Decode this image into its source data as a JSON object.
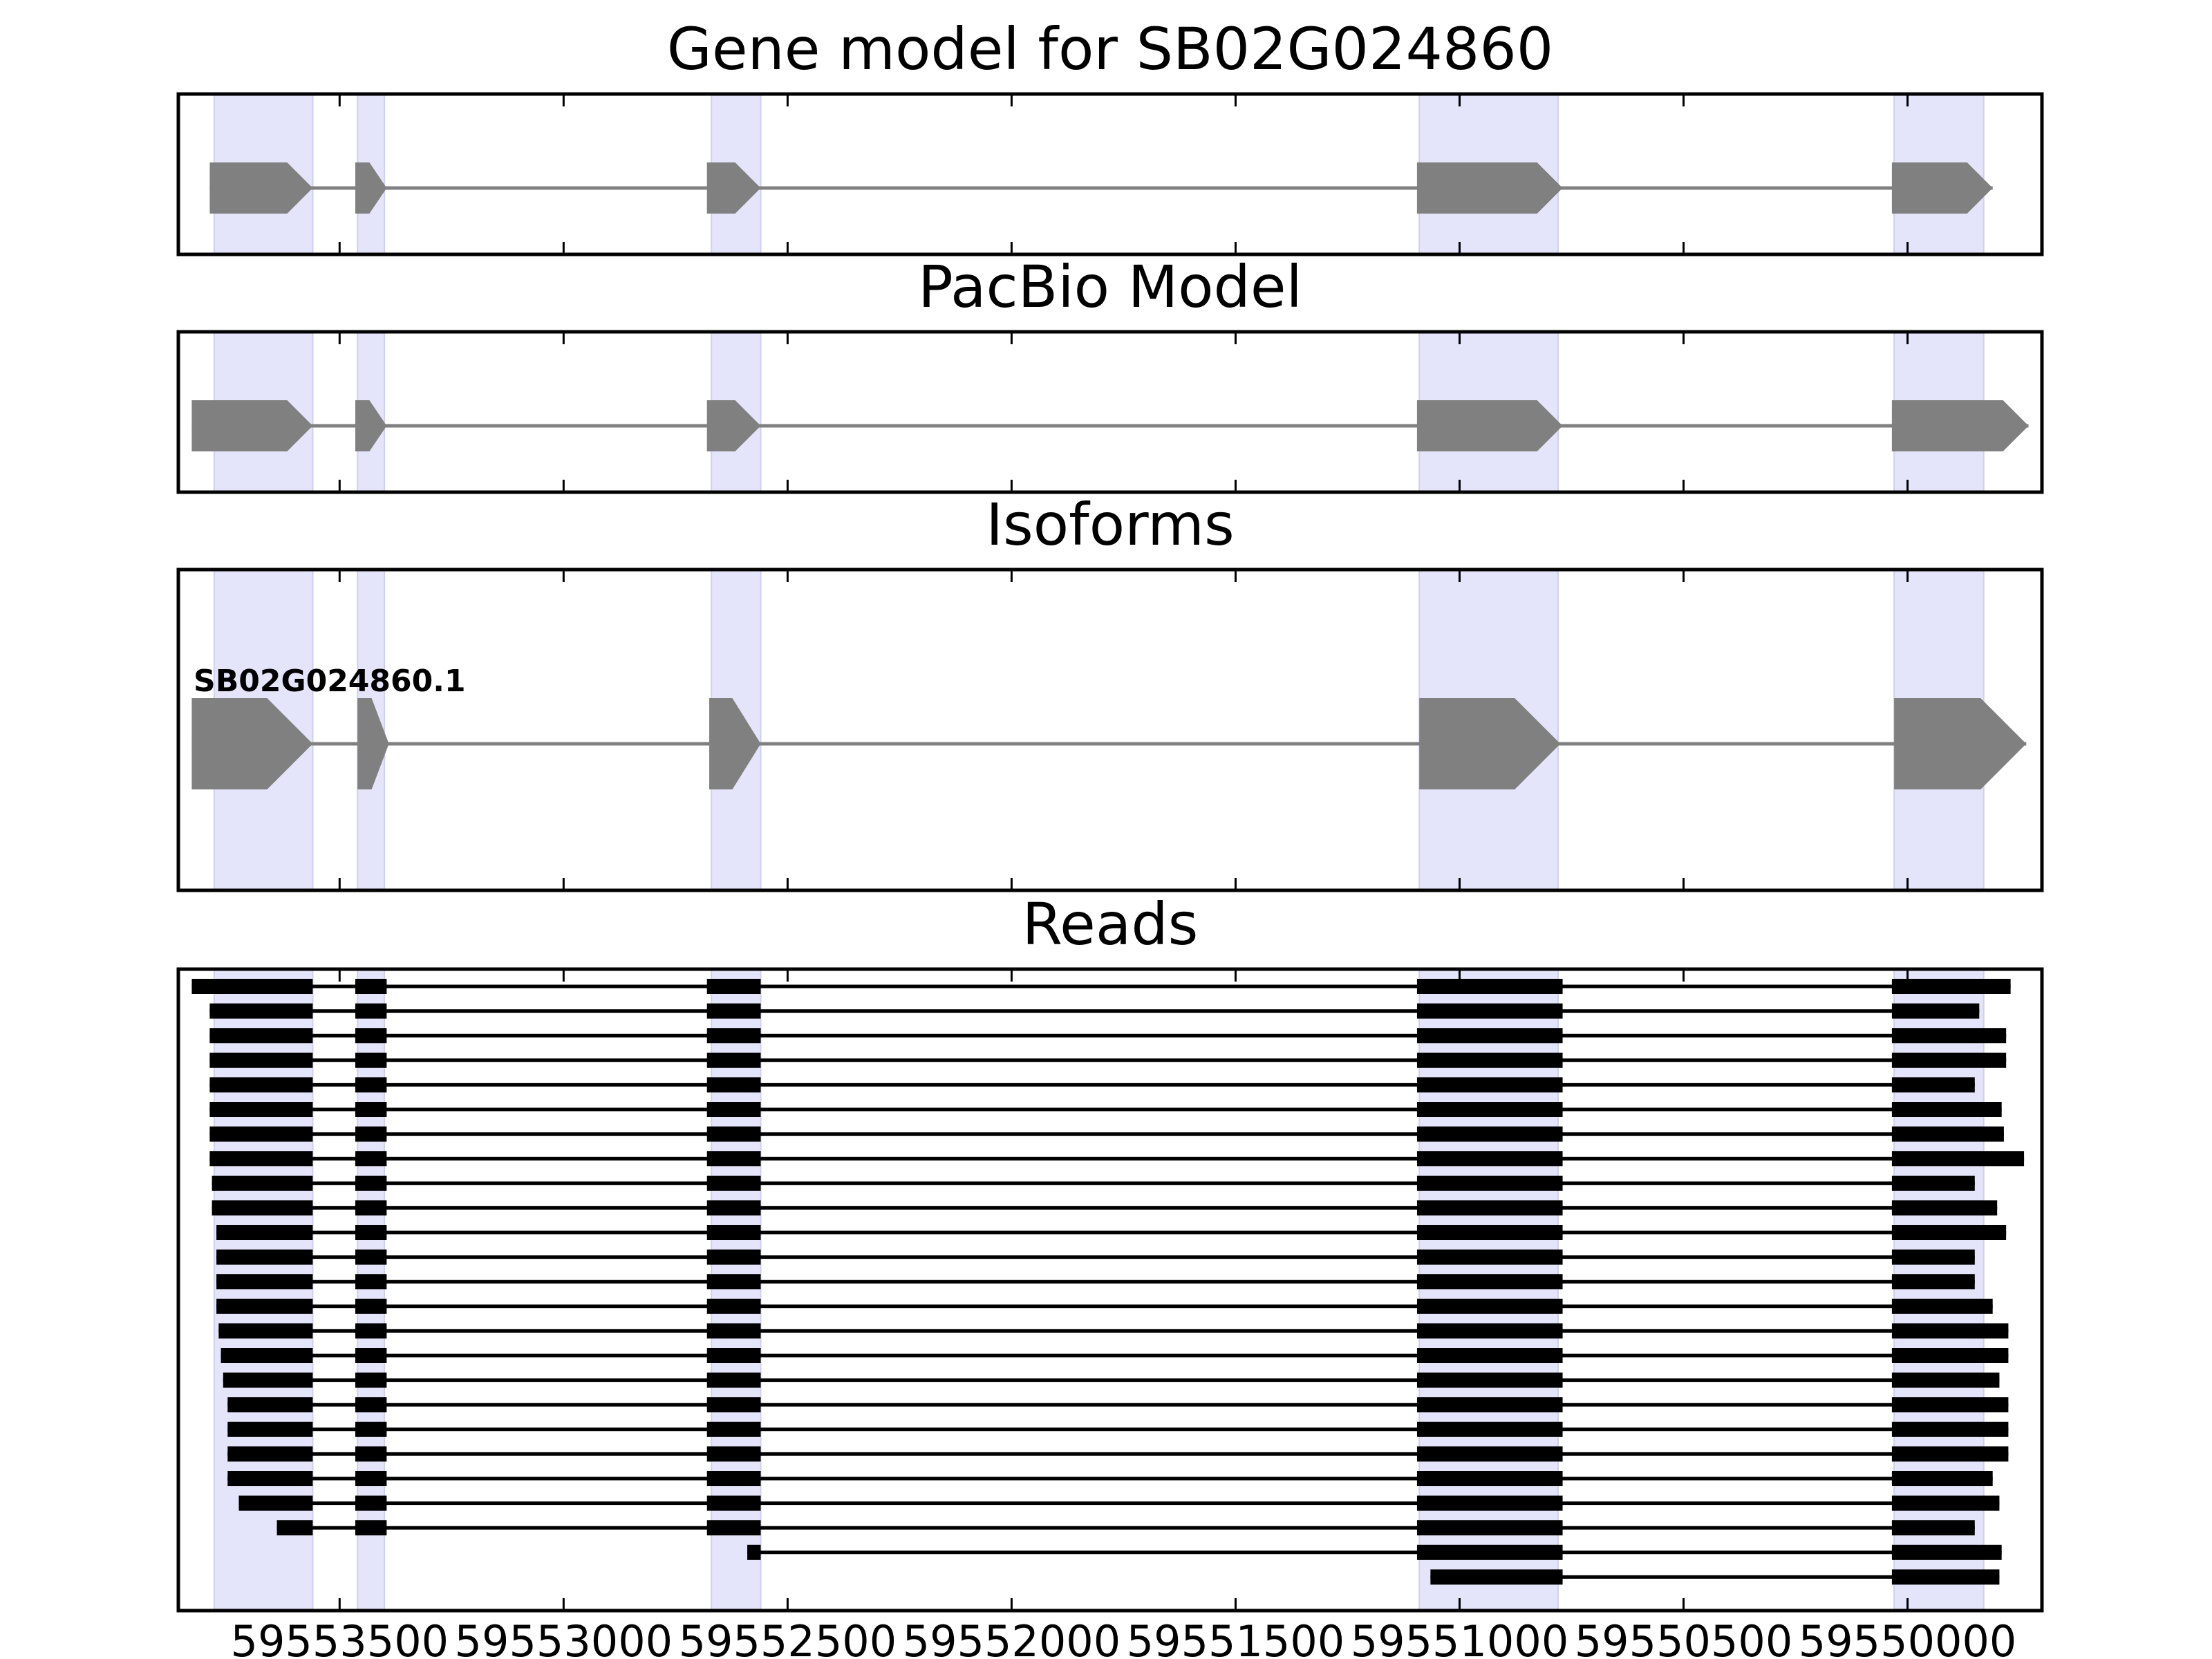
{
  "chart_data": {
    "type": "gene-track",
    "strand": "reverse",
    "x_ticks": [
      59553500,
      59553000,
      59552500,
      59552000,
      59551500,
      59551000,
      59550500,
      59550000
    ],
    "x_tick_labels": [
      "59553500",
      "59553000",
      "59552500",
      "59552000",
      "59551500",
      "59551000",
      "59550500",
      "59550000"
    ],
    "xlim": [
      59553860,
      59549700
    ],
    "highlight_regions": [
      [
        59553780,
        59553560
      ],
      [
        59553460,
        59553400
      ],
      [
        59552670,
        59552560
      ],
      [
        59551090,
        59550780
      ],
      [
        59550030,
        59549830
      ]
    ],
    "panels": [
      {
        "title": "Gene model for SB02G024860",
        "exons": [
          [
            59553790,
            59553560
          ],
          [
            59553465,
            59553395
          ],
          [
            59552680,
            59552560
          ],
          [
            59551095,
            59550770
          ],
          [
            59550035,
            59549810
          ]
        ]
      },
      {
        "title": "PacBio Model",
        "exons": [
          [
            59553830,
            59553560
          ],
          [
            59553465,
            59553395
          ],
          [
            59552680,
            59552560
          ],
          [
            59551095,
            59550770
          ],
          [
            59550035,
            59549730
          ]
        ]
      },
      {
        "title": "Isoforms",
        "isoform_label": "SB02G024860.1",
        "exons": [
          [
            59553830,
            59553560
          ],
          [
            59553460,
            59553390
          ],
          [
            59552675,
            59552560
          ],
          [
            59551090,
            59550775
          ],
          [
            59550030,
            59549735
          ]
        ]
      },
      {
        "title": "Reads",
        "reads": [
          [
            [
              59553830,
              59553560
            ],
            [
              59553465,
              59553395
            ],
            [
              59552680,
              59552560
            ],
            [
              59551095,
              59550770
            ],
            [
              59550035,
              59549770
            ]
          ],
          [
            [
              59553790,
              59553560
            ],
            [
              59553465,
              59553395
            ],
            [
              59552680,
              59552560
            ],
            [
              59551095,
              59550770
            ],
            [
              59550035,
              59549840
            ]
          ],
          [
            [
              59553790,
              59553560
            ],
            [
              59553465,
              59553395
            ],
            [
              59552680,
              59552560
            ],
            [
              59551095,
              59550770
            ],
            [
              59550035,
              59549780
            ]
          ],
          [
            [
              59553790,
              59553560
            ],
            [
              59553465,
              59553395
            ],
            [
              59552680,
              59552560
            ],
            [
              59551095,
              59550770
            ],
            [
              59550035,
              59549780
            ]
          ],
          [
            [
              59553790,
              59553560
            ],
            [
              59553465,
              59553395
            ],
            [
              59552680,
              59552560
            ],
            [
              59551095,
              59550770
            ],
            [
              59550035,
              59549850
            ]
          ],
          [
            [
              59553790,
              59553560
            ],
            [
              59553465,
              59553395
            ],
            [
              59552680,
              59552560
            ],
            [
              59551095,
              59550770
            ],
            [
              59550035,
              59549790
            ]
          ],
          [
            [
              59553790,
              59553560
            ],
            [
              59553465,
              59553395
            ],
            [
              59552680,
              59552560
            ],
            [
              59551095,
              59550770
            ],
            [
              59550035,
              59549785
            ]
          ],
          [
            [
              59553790,
              59553560
            ],
            [
              59553465,
              59553395
            ],
            [
              59552680,
              59552560
            ],
            [
              59551095,
              59550770
            ],
            [
              59550035,
              59549740
            ]
          ],
          [
            [
              59553785,
              59553560
            ],
            [
              59553465,
              59553395
            ],
            [
              59552680,
              59552560
            ],
            [
              59551095,
              59550770
            ],
            [
              59550035,
              59549850
            ]
          ],
          [
            [
              59553785,
              59553560
            ],
            [
              59553465,
              59553395
            ],
            [
              59552680,
              59552560
            ],
            [
              59551095,
              59550770
            ],
            [
              59550035,
              59549800
            ]
          ],
          [
            [
              59553775,
              59553560
            ],
            [
              59553465,
              59553395
            ],
            [
              59552680,
              59552560
            ],
            [
              59551095,
              59550770
            ],
            [
              59550035,
              59549780
            ]
          ],
          [
            [
              59553775,
              59553560
            ],
            [
              59553465,
              59553395
            ],
            [
              59552680,
              59552560
            ],
            [
              59551095,
              59550770
            ],
            [
              59550035,
              59549850
            ]
          ],
          [
            [
              59553775,
              59553560
            ],
            [
              59553465,
              59553395
            ],
            [
              59552680,
              59552560
            ],
            [
              59551095,
              59550770
            ],
            [
              59550035,
              59549850
            ]
          ],
          [
            [
              59553775,
              59553560
            ],
            [
              59553465,
              59553395
            ],
            [
              59552680,
              59552560
            ],
            [
              59551095,
              59550770
            ],
            [
              59550035,
              59549810
            ]
          ],
          [
            [
              59553770,
              59553560
            ],
            [
              59553465,
              59553395
            ],
            [
              59552680,
              59552560
            ],
            [
              59551095,
              59550770
            ],
            [
              59550035,
              59549775
            ]
          ],
          [
            [
              59553765,
              59553560
            ],
            [
              59553465,
              59553395
            ],
            [
              59552680,
              59552560
            ],
            [
              59551095,
              59550770
            ],
            [
              59550035,
              59549775
            ]
          ],
          [
            [
              59553760,
              59553560
            ],
            [
              59553465,
              59553395
            ],
            [
              59552680,
              59552560
            ],
            [
              59551095,
              59550770
            ],
            [
              59550035,
              59549795
            ]
          ],
          [
            [
              59553750,
              59553560
            ],
            [
              59553465,
              59553395
            ],
            [
              59552680,
              59552560
            ],
            [
              59551095,
              59550770
            ],
            [
              59550035,
              59549775
            ]
          ],
          [
            [
              59553750,
              59553560
            ],
            [
              59553465,
              59553395
            ],
            [
              59552680,
              59552560
            ],
            [
              59551095,
              59550770
            ],
            [
              59550035,
              59549775
            ]
          ],
          [
            [
              59553750,
              59553560
            ],
            [
              59553465,
              59553395
            ],
            [
              59552680,
              59552560
            ],
            [
              59551095,
              59550770
            ],
            [
              59550035,
              59549775
            ]
          ],
          [
            [
              59553750,
              59553560
            ],
            [
              59553465,
              59553395
            ],
            [
              59552680,
              59552560
            ],
            [
              59551095,
              59550770
            ],
            [
              59550035,
              59549810
            ]
          ],
          [
            [
              59553725,
              59553560
            ],
            [
              59553465,
              59553395
            ],
            [
              59552680,
              59552560
            ],
            [
              59551095,
              59550770
            ],
            [
              59550035,
              59549795
            ]
          ],
          [
            [
              59553640,
              59553560
            ],
            [
              59553465,
              59553395
            ],
            [
              59552680,
              59552560
            ],
            [
              59551095,
              59550770
            ],
            [
              59550035,
              59549850
            ]
          ],
          [
            [
              59552590,
              59552560
            ],
            [
              59551095,
              59550770
            ],
            [
              59550035,
              59549790
            ]
          ],
          [
            [
              59551065,
              59550770
            ],
            [
              59550035,
              59549795
            ]
          ]
        ]
      }
    ]
  }
}
